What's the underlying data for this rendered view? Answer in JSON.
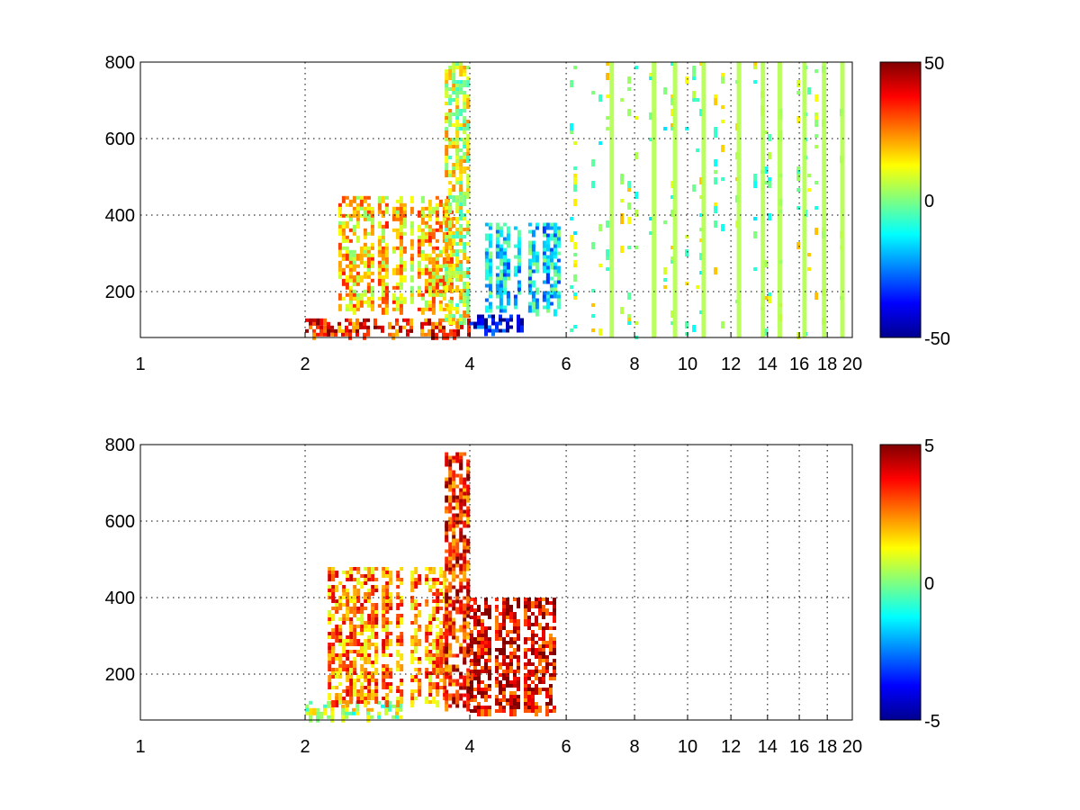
{
  "chart_data": [
    {
      "type": "heatmap",
      "title": "",
      "xlabel": "",
      "ylabel": "",
      "xlim": [
        1,
        20
      ],
      "ylim": [
        80,
        800
      ],
      "x_scale": "log",
      "x_ticks": [
        "1",
        "2",
        "4",
        "6",
        "8",
        "10",
        "12",
        "14",
        "16",
        "18",
        "20"
      ],
      "y_ticks": [
        "200",
        "400",
        "600",
        "800"
      ],
      "grid": true,
      "colormap": "jet",
      "colorbar": {
        "min": -50,
        "max": 50,
        "ticks": [
          "-50",
          "0",
          "50"
        ]
      },
      "sparse_columns_x": [
        7.2,
        8.6,
        9.4,
        10.6,
        12.3,
        13.6,
        14.6,
        16.2,
        17.6,
        19.0
      ],
      "regions": [
        {
          "x_range": [
            2.0,
            4.0
          ],
          "y_range": [
            90,
            130
          ],
          "value": 35
        },
        {
          "x_range": [
            2.3,
            3.7
          ],
          "y_range": [
            150,
            450
          ],
          "value": 18
        },
        {
          "x_range": [
            3.6,
            4.0
          ],
          "y_range": [
            120,
            800
          ],
          "value": 8
        },
        {
          "x_range": [
            4.0,
            5.0
          ],
          "y_range": [
            95,
            140
          ],
          "value": -40
        },
        {
          "x_range": [
            4.2,
            5.8
          ],
          "y_range": [
            150,
            380
          ],
          "value": -15
        },
        {
          "x_range": [
            6.0,
            20.0
          ],
          "y_range": [
            80,
            800
          ],
          "value": 2
        }
      ]
    },
    {
      "type": "heatmap",
      "title": "",
      "xlabel": "",
      "ylabel": "",
      "xlim": [
        1,
        20
      ],
      "ylim": [
        80,
        800
      ],
      "x_scale": "log",
      "x_ticks": [
        "1",
        "2",
        "4",
        "6",
        "8",
        "10",
        "12",
        "14",
        "16",
        "18",
        "20"
      ],
      "y_ticks": [
        "200",
        "400",
        "600",
        "800"
      ],
      "grid": true,
      "colormap": "jet",
      "colorbar": {
        "min": -5,
        "max": 5,
        "ticks": [
          "-5",
          "0",
          "5"
        ]
      },
      "regions": [
        {
          "x_range": [
            2.0,
            3.0
          ],
          "y_range": [
            90,
            130
          ],
          "value": 0.5
        },
        {
          "x_range": [
            2.2,
            3.6
          ],
          "y_range": [
            130,
            480
          ],
          "value": 2.5
        },
        {
          "x_range": [
            3.6,
            4.0
          ],
          "y_range": [
            120,
            780
          ],
          "value": 3.5
        },
        {
          "x_range": [
            4.0,
            5.7
          ],
          "y_range": [
            100,
            400
          ],
          "value": 4.0
        }
      ]
    }
  ]
}
